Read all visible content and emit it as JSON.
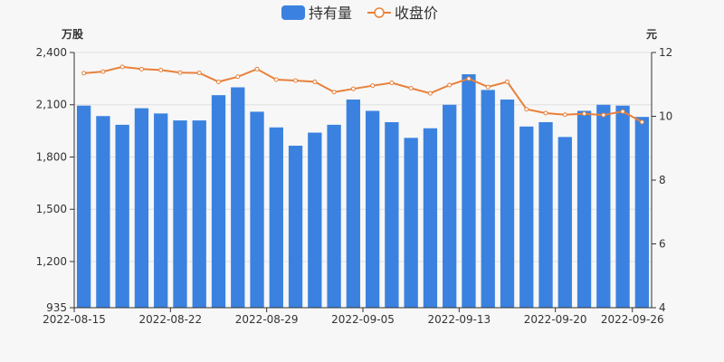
{
  "chart_data": {
    "type": "bar",
    "categories": [
      "2022-08-15",
      "2022-08-16",
      "2022-08-17",
      "2022-08-18",
      "2022-08-19",
      "2022-08-22",
      "2022-08-23",
      "2022-08-24",
      "2022-08-25",
      "2022-08-26",
      "2022-08-29",
      "2022-08-30",
      "2022-08-31",
      "2022-09-01",
      "2022-09-02",
      "2022-09-05",
      "2022-09-06",
      "2022-09-07",
      "2022-09-08",
      "2022-09-09",
      "2022-09-13",
      "2022-09-14",
      "2022-09-15",
      "2022-09-16",
      "2022-09-19",
      "2022-09-20",
      "2022-09-21",
      "2022-09-22",
      "2022-09-23",
      "2022-09-26"
    ],
    "x_tick_labels": [
      "2022-08-15",
      "2022-08-22",
      "2022-08-29",
      "2022-09-05",
      "2022-09-13",
      "2022-09-20",
      "2022-09-26"
    ],
    "x_tick_indices": [
      0,
      5,
      10,
      15,
      20,
      25,
      29
    ],
    "series": [
      {
        "name": "持有量",
        "type": "bar",
        "axis": "left",
        "color": "#3b82e0",
        "values": [
          2095,
          2035,
          1985,
          2080,
          2050,
          2010,
          2010,
          2155,
          2200,
          2060,
          1970,
          1865,
          1940,
          1985,
          2130,
          2065,
          2000,
          1910,
          1965,
          2100,
          2275,
          2185,
          2130,
          1975,
          2000,
          1915,
          2065,
          2100,
          2095,
          2030
        ]
      },
      {
        "name": "收盘价",
        "type": "line",
        "axis": "right",
        "color": "#e8803a",
        "values": [
          11.35,
          11.4,
          11.55,
          11.48,
          11.45,
          11.37,
          11.36,
          11.08,
          11.24,
          11.48,
          11.15,
          11.12,
          11.08,
          10.76,
          10.86,
          10.96,
          11.05,
          10.88,
          10.72,
          10.98,
          11.18,
          10.92,
          11.08,
          10.22,
          10.1,
          10.05,
          10.08,
          10.04,
          10.15,
          9.82
        ]
      }
    ],
    "y_left": {
      "unit": "万股",
      "ylim": [
        935,
        2400
      ],
      "ticks": [
        935,
        1200,
        1500,
        1800,
        2100,
        2400
      ],
      "tick_labels": [
        "935",
        "1,200",
        "1,500",
        "1,800",
        "2,100",
        "2,400"
      ]
    },
    "y_right": {
      "unit": "元",
      "ylim": [
        4,
        12
      ],
      "ticks": [
        4,
        6,
        8,
        10,
        12
      ]
    },
    "grid": "horizontal",
    "legend_position": "top-center"
  }
}
